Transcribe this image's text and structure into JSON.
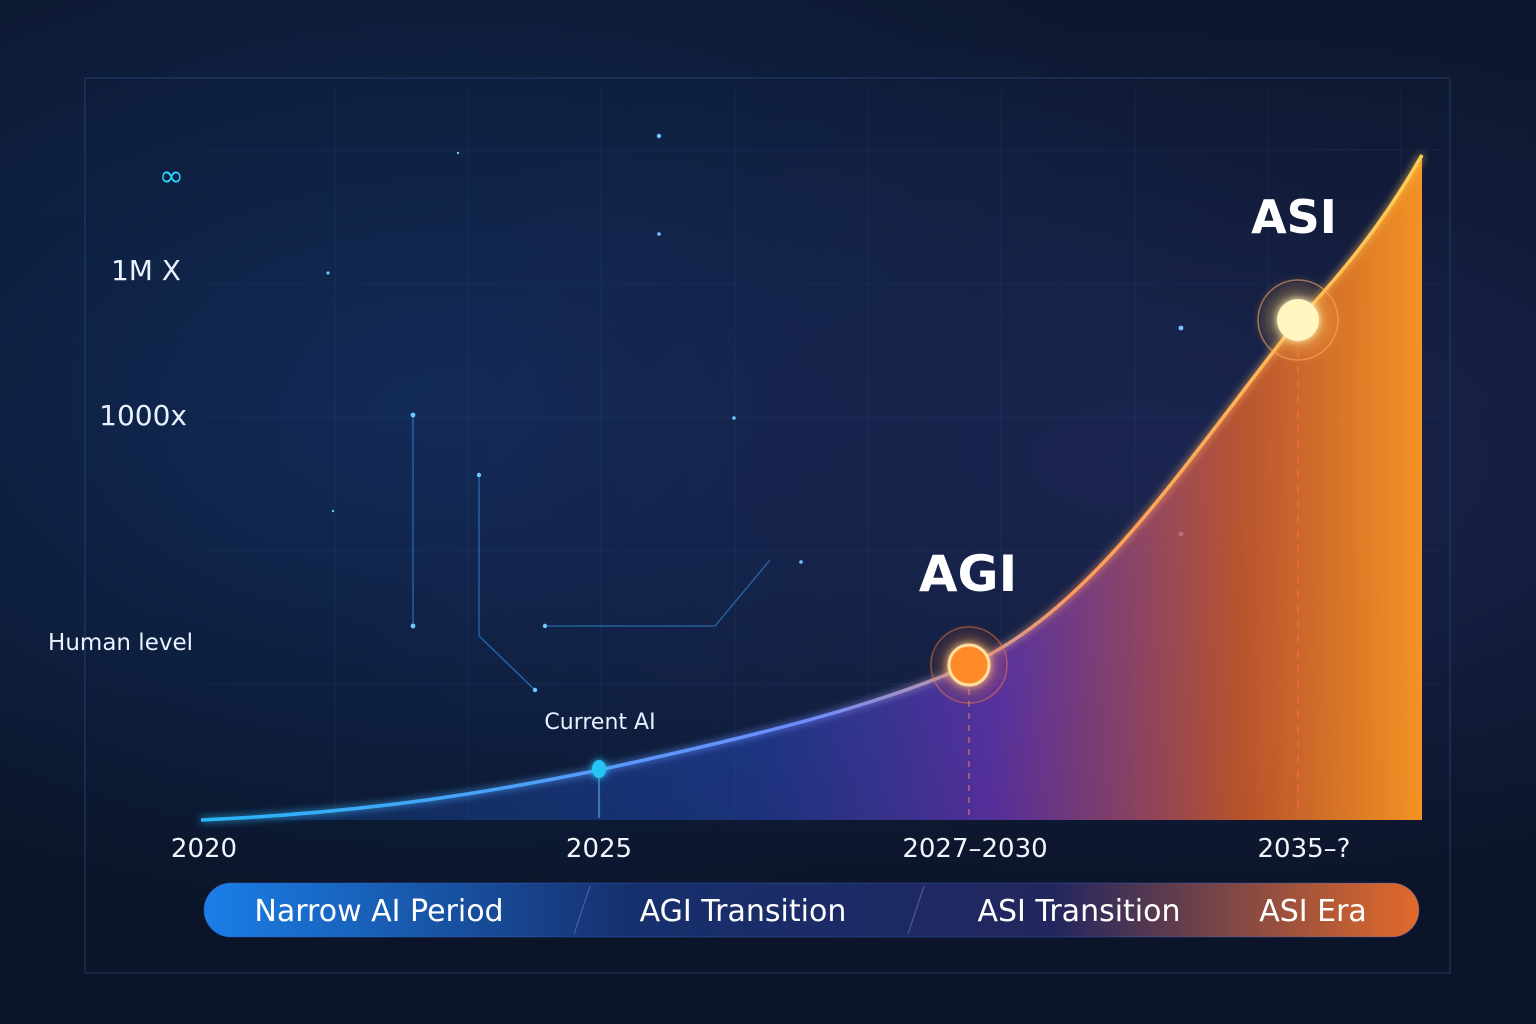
{
  "chart_data": {
    "type": "area",
    "title": "",
    "xlabel": "",
    "ylabel": "",
    "x_ticks": [
      "2020",
      "2025",
      "2027–2030",
      "2035–?"
    ],
    "y_ticks": [
      "Human level",
      "1000x",
      "1M X",
      "∞"
    ],
    "series": [
      {
        "points": [
          {
            "x": "2020",
            "y": "0"
          },
          {
            "x": "2025",
            "y": "0.15"
          },
          {
            "x": "2027–2030",
            "y": "Human level"
          },
          {
            "x": "2035–?",
            "y": "1M X"
          }
        ]
      }
    ],
    "milestones": [
      {
        "label": "Current AI",
        "x": "2025",
        "y": "0.15",
        "color": "#27c4f5"
      },
      {
        "label": "AGI",
        "x": "2027–2030",
        "y": "Human level",
        "color": "#ff8a2a"
      },
      {
        "label": "ASI",
        "x": "2035–?",
        "y": "1M X",
        "color": "#fff3b0"
      }
    ],
    "phases": [
      "Narrow AI Period",
      "AGI Transition",
      "ASI Transition",
      "ASI Era"
    ],
    "colors": {
      "start": "#1e8cf0",
      "mid": "#7a3bd0",
      "end": "#ff8a1e",
      "axis": "#28c8ff"
    },
    "grid": true,
    "legend": "none"
  }
}
